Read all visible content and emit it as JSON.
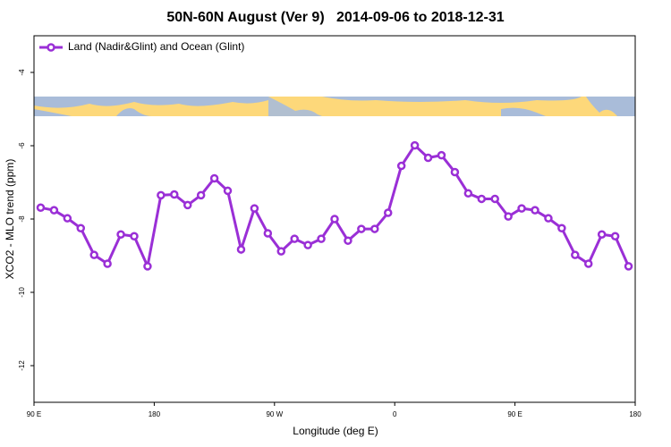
{
  "chart_data": {
    "type": "line",
    "title": "50N-60N August (Ver 9)   2014-09-06 to 2018-12-31",
    "x_label": "Longitude (deg E)",
    "y_label": "XCO2 - MLO trend (ppm)",
    "x": [
      95,
      105,
      115,
      125,
      135,
      145,
      155,
      165,
      175,
      185,
      195,
      205,
      215,
      225,
      235,
      245,
      255,
      265,
      275,
      285,
      295,
      305,
      315,
      325,
      335,
      345,
      355,
      365,
      375,
      385,
      395,
      405,
      415,
      425,
      435,
      445,
      455,
      465,
      475,
      485,
      495,
      505,
      515,
      525,
      535
    ],
    "series": [
      {
        "name": "Land (Nadir&Glint) and Ocean (Glint)",
        "color": "#9a2fd6",
        "values": [
          -7.69,
          -7.76,
          -7.98,
          -8.25,
          -8.98,
          -9.22,
          -8.42,
          -8.47,
          -9.29,
          -7.35,
          -7.33,
          -7.62,
          -7.35,
          -6.89,
          -7.23,
          -8.83,
          -7.71,
          -8.39,
          -8.88,
          -8.54,
          -8.71,
          -8.54,
          -8.0,
          -8.59,
          -8.27,
          -8.27,
          -7.83,
          -6.55,
          -5.99,
          -6.33,
          -6.26,
          -6.72,
          -7.3,
          -7.45,
          -7.45,
          -7.93,
          -7.71,
          -7.76,
          -7.98,
          -8.25,
          -8.98,
          -9.22,
          -8.42,
          -8.47,
          -9.29
        ]
      }
    ],
    "xlim": [
      90,
      540
    ],
    "xticks": [
      {
        "value": 90,
        "label": "90 E"
      },
      {
        "value": 180,
        "label": "180"
      },
      {
        "value": 270,
        "label": "90 W"
      },
      {
        "value": 360,
        "label": "0"
      },
      {
        "value": 450,
        "label": "90 E"
      },
      {
        "value": 540,
        "label": "180"
      }
    ],
    "ylim": [
      -13,
      -3
    ],
    "yticks": [
      -4,
      -6,
      -8,
      -10,
      -12
    ],
    "legend": "top-left"
  }
}
